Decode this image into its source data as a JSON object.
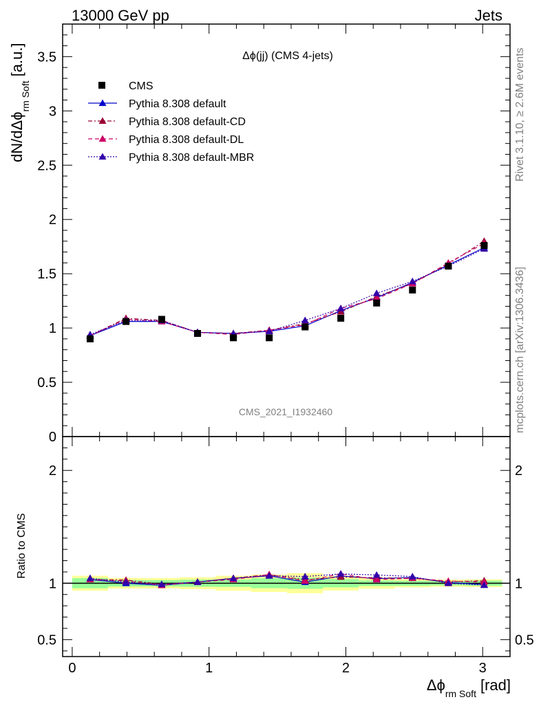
{
  "header": {
    "left": "13000 GeV pp",
    "right": "Jets"
  },
  "side": {
    "rivet": "Rivet 3.1.10, ≥ 2.6M events",
    "mcplots": "mcplots.cern.ch [arXiv:1306.3436]"
  },
  "chart_data": {
    "type": "line",
    "title": "Δϕ(jj) (CMS 4-jets)",
    "analysis_id": "CMS_2021_I1932460",
    "ylabel_main": "dN/dΔϕ",
    "ylabel_main_sub": "rm Soft",
    "ylabel_main_unit": "[a.u.]",
    "ylabel_ratio": "Ratio to CMS",
    "xlabel": "Δϕ",
    "xlabel_sub": "rm Soft",
    "xlabel_unit": "[rad]",
    "xlim": [
      -0.07,
      3.2
    ],
    "ylim_main": [
      0,
      3.8
    ],
    "ylim_ratio": [
      0.35,
      2.3
    ],
    "xticks": [
      "0",
      "1",
      "2",
      "3"
    ],
    "yticks_main": [
      "0",
      "0.5",
      "1",
      "1.5",
      "2",
      "2.5",
      "3",
      "3.5"
    ],
    "yticks_ratio": [
      "0.5",
      "1",
      "2"
    ],
    "x": [
      0.131,
      0.393,
      0.654,
      0.916,
      1.178,
      1.44,
      1.702,
      1.963,
      2.225,
      2.487,
      2.749,
      3.011
    ],
    "data": {
      "name": "CMS",
      "values": [
        0.9,
        1.06,
        1.08,
        0.95,
        0.91,
        0.91,
        1.01,
        1.09,
        1.23,
        1.35,
        1.57,
        1.76
      ],
      "band_inner": [
        0.04,
        0.03,
        0.03,
        0.03,
        0.03,
        0.04,
        0.05,
        0.04,
        0.03,
        0.03,
        0.03,
        0.04
      ],
      "band_outer": [
        0.06,
        0.05,
        0.05,
        0.05,
        0.06,
        0.07,
        0.09,
        0.07,
        0.06,
        0.05,
        0.05,
        0.06
      ]
    },
    "series": [
      {
        "name": "Pythia 8.308 default",
        "values": [
          0.93,
          1.06,
          1.06,
          0.96,
          0.95,
          0.97,
          1.02,
          1.16,
          1.28,
          1.42,
          1.58,
          1.74
        ],
        "color": "#0000cc",
        "dash": ""
      },
      {
        "name": "Pythia 8.308 default-CD",
        "values": [
          0.93,
          1.09,
          1.07,
          0.96,
          0.95,
          0.98,
          1.04,
          1.15,
          1.29,
          1.41,
          1.59,
          1.8
        ],
        "color": "#990033",
        "dash": "6 3 2 3"
      },
      {
        "name": "Pythia 8.308 default-DL",
        "values": [
          0.93,
          1.08,
          1.06,
          0.96,
          0.94,
          0.98,
          1.03,
          1.18,
          1.27,
          1.41,
          1.6,
          1.78
        ],
        "color": "#cc0066",
        "dash": "6 4"
      },
      {
        "name": "Pythia 8.308 default-MBR",
        "values": [
          0.94,
          1.07,
          1.07,
          0.96,
          0.95,
          0.97,
          1.07,
          1.18,
          1.32,
          1.43,
          1.57,
          1.73
        ],
        "color": "#3300aa",
        "dash": "2 2"
      }
    ],
    "legend_position": "top-left",
    "grid": false
  }
}
